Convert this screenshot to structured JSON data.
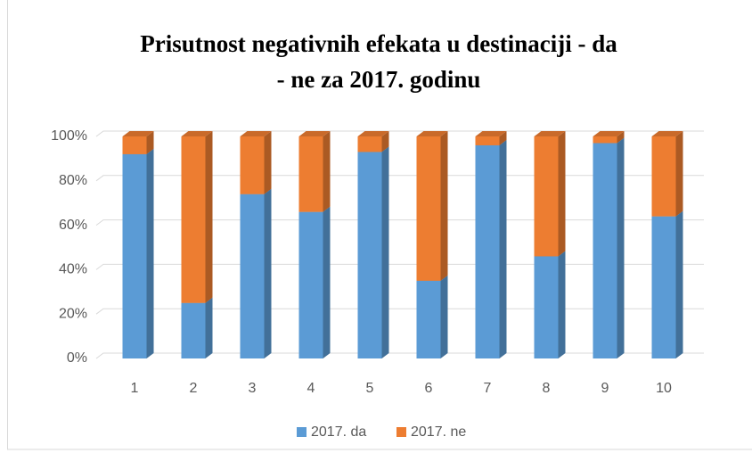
{
  "chart_data": {
    "type": "bar3d_stacked_percent",
    "title": [
      "Prisutnost negativnih efekata u destinaciji - da",
      "- ne za 2017. godinu"
    ],
    "categories": [
      "1",
      "2",
      "3",
      "4",
      "5",
      "6",
      "7",
      "8",
      "9",
      "10"
    ],
    "series": [
      {
        "name": "2017. da",
        "color": "#5b9bd5",
        "values": [
          92,
          25,
          74,
          66,
          93,
          35,
          96,
          46,
          97,
          64
        ]
      },
      {
        "name": "2017. ne",
        "color": "#ed7d31",
        "values": [
          8,
          75,
          26,
          34,
          7,
          65,
          4,
          54,
          3,
          36
        ]
      }
    ],
    "ylim": [
      0,
      100
    ],
    "yticks": [
      {
        "value": 0,
        "label": "0%"
      },
      {
        "value": 20,
        "label": "20%"
      },
      {
        "value": 40,
        "label": "40%"
      },
      {
        "value": 60,
        "label": "60%"
      },
      {
        "value": 80,
        "label": "80%"
      },
      {
        "value": 100,
        "label": "100%"
      }
    ],
    "grid": true,
    "legend": "bottom"
  }
}
